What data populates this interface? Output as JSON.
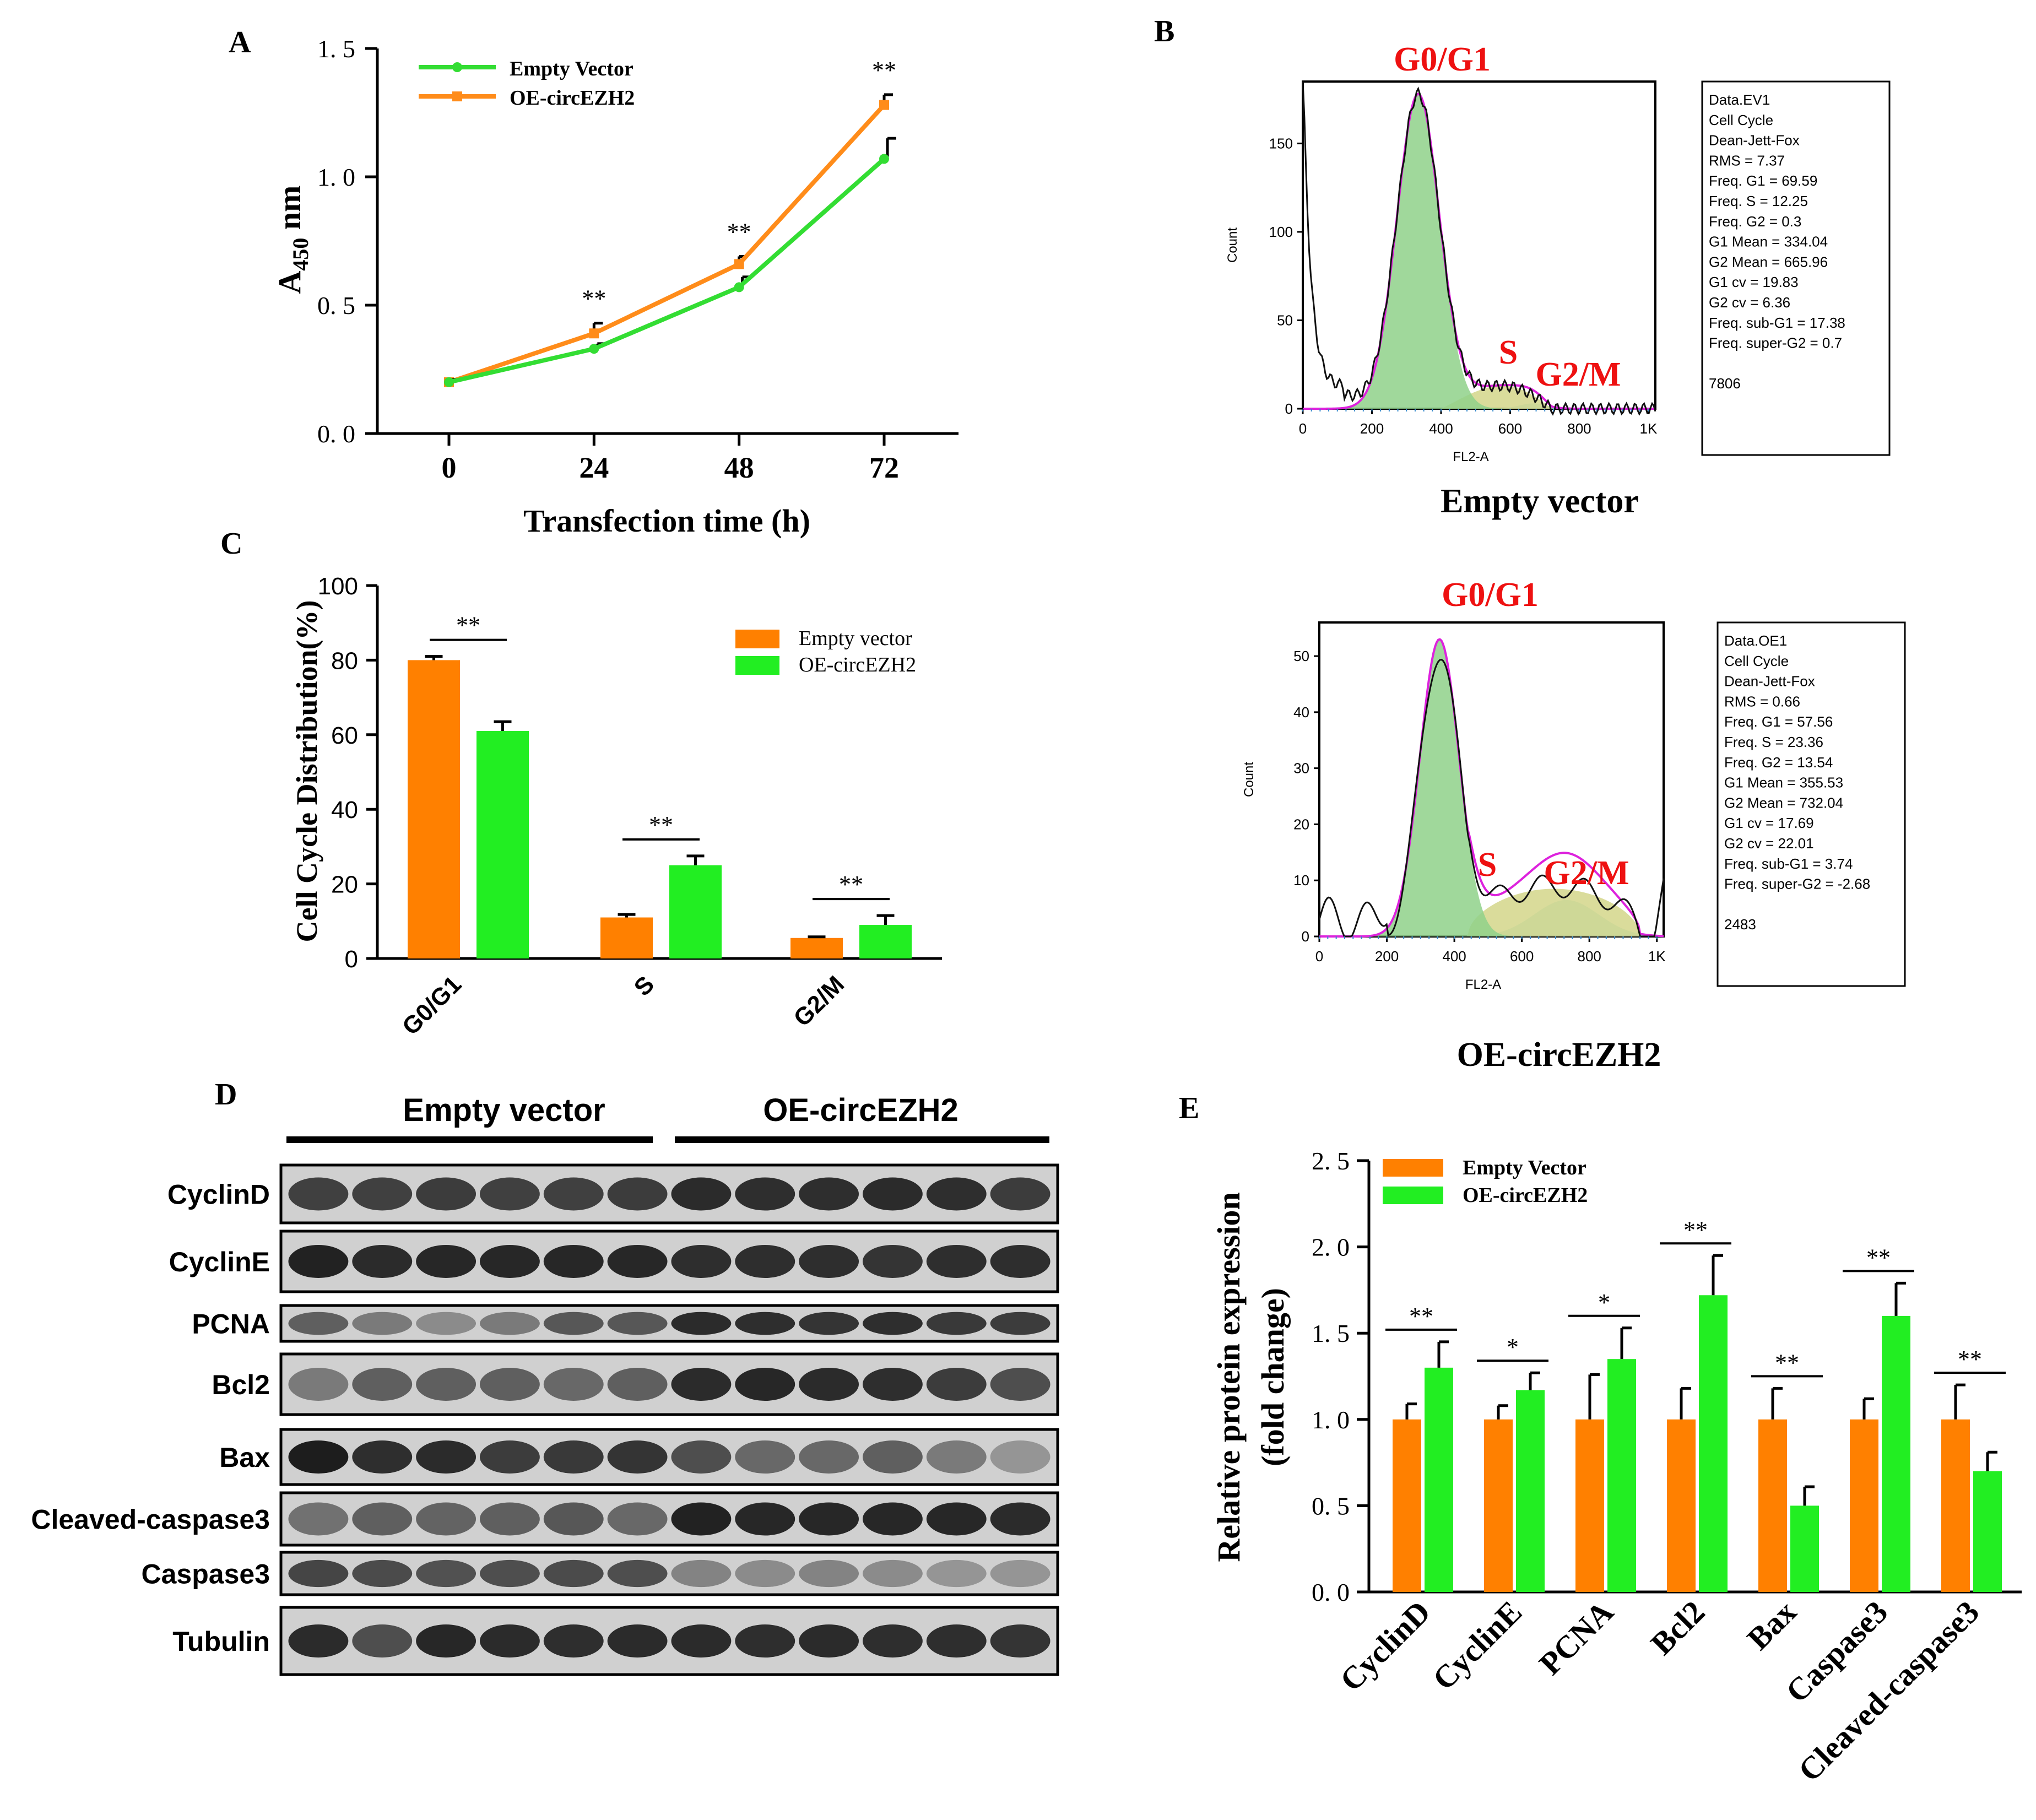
{
  "colors": {
    "empty": "#FF8000",
    "oe": "#22EE22",
    "line_empty": "#FF8C1A",
    "line_oe": "#33DD33",
    "red": "#EE1111",
    "magenta": "#DD22DD",
    "g1_fill": "#8FD18A",
    "s_fill": "#D4D68A",
    "g2_fill": "#9FDFE0",
    "blot_bg": "#D0D0D0"
  },
  "panels": {
    "A": "A",
    "B": "B",
    "C": "C",
    "D": "D",
    "E": "E"
  },
  "chart_data": [
    {
      "panel": "A",
      "type": "line",
      "x": [
        0,
        24,
        48,
        72
      ],
      "xlabel": "Transfection time (h)",
      "ylabel_main": "A",
      "ylabel_sub": "450",
      "ylabel_unit": " nm",
      "ylim": [
        0,
        1.5
      ],
      "yticks": [
        "0. 0",
        "0. 5",
        "1. 0",
        "1. 5"
      ],
      "ytick_values": [
        0,
        0.5,
        1.0,
        1.5
      ],
      "xticks": [
        "0",
        "24",
        "48",
        "72"
      ],
      "legend_position": "top-left",
      "series": [
        {
          "name": "Empty Vector",
          "values": [
            0.2,
            0.33,
            0.57,
            1.07
          ],
          "errors": [
            0.01,
            0.02,
            0.04,
            0.08
          ]
        },
        {
          "name": "OE-circEZH2",
          "values": [
            0.2,
            0.39,
            0.66,
            1.28
          ],
          "errors": [
            0.01,
            0.04,
            0.03,
            0.04
          ]
        }
      ],
      "significance": [
        "**",
        "**",
        "**"
      ]
    },
    {
      "panel": "B1",
      "type": "area",
      "title": "Empty vector",
      "ylabel": "Count",
      "xlabel": "FL2-A",
      "xticks": [
        "0",
        "200",
        "400",
        "600",
        "800",
        "1K"
      ],
      "yticks": [
        "0",
        "50",
        "100",
        "150"
      ],
      "ylim": [
        0,
        185
      ],
      "phase_labels": {
        "g1": "G0/G1",
        "s": "S",
        "g2": "G2/M"
      },
      "stats": [
        "Data.EV1",
        "Cell Cycle",
        "Dean-Jett-Fox",
        "RMS  = 7.37",
        "Freq. G1  = 69.59",
        "Freq. S = 12.25",
        "Freq. G2  = 0.3",
        "G1 Mean  = 334.04",
        "G2 Mean  = 665.96",
        "G1 cv  = 19.83",
        "G2 cv = 6.36",
        "Freq. sub-G1  = 17.38",
        "Freq. super-G2 = 0.7",
        "",
        "7806"
      ]
    },
    {
      "panel": "B2",
      "type": "area",
      "title": "OE-circEZH2",
      "ylabel": "Count",
      "xlabel": "FL2-A",
      "xticks": [
        "0",
        "200",
        "400",
        "600",
        "800",
        "1K"
      ],
      "yticks": [
        "0",
        "10",
        "20",
        "30",
        "40",
        "50"
      ],
      "ylim": [
        0,
        56
      ],
      "phase_labels": {
        "g1": "G0/G1",
        "s": "S",
        "g2": "G2/M"
      },
      "stats": [
        "Data.OE1",
        "Cell Cycle",
        "Dean-Jett-Fox",
        "RMS  = 0.66",
        "Freq. G1  = 57.56",
        "Freq. S = 23.36",
        "Freq. G2  = 13.54",
        "G1 Mean  = 355.53",
        "G2 Mean  = 732.04",
        "G1 cv  = 17.69",
        "G2 cv = 22.01",
        "Freq. sub-G1  = 3.74",
        "Freq. super-G2 = -2.68",
        "",
        "2483"
      ]
    },
    {
      "panel": "C",
      "type": "bar",
      "categories": [
        "G0/G1",
        "S",
        "G2/M"
      ],
      "ylabel": "Cell Cycle Distribution(%)",
      "ylim": [
        0,
        100
      ],
      "yticks": [
        "0",
        "20",
        "40",
        "60",
        "80",
        "100"
      ],
      "legend_position": "top-right",
      "series": [
        {
          "name": "Empty vector",
          "values": [
            80,
            11,
            5.5
          ],
          "errors": [
            1,
            0.8,
            0.3
          ]
        },
        {
          "name": "OE-circEZH2",
          "values": [
            61,
            25,
            9
          ],
          "errors": [
            2.5,
            2.5,
            2.5
          ]
        }
      ],
      "significance": [
        "**",
        "**",
        "**"
      ]
    },
    {
      "panel": "E",
      "type": "bar",
      "categories": [
        "CyclinD",
        "CyclinE",
        "PCNA",
        "Bcl2",
        "Bax",
        "Caspase3",
        "Cleaved-caspase3"
      ],
      "ylabel": "Relative protein expression",
      "ylabel2": "(fold change)",
      "ylim": [
        0,
        2.5
      ],
      "yticks": [
        "0. 0",
        "0. 5",
        "1. 0",
        "1. 5",
        "2. 0",
        "2. 5"
      ],
      "legend_position": "top-left",
      "series": [
        {
          "name": "Empty Vector",
          "values": [
            1.0,
            1.0,
            1.0,
            1.0,
            1.0,
            1.0,
            1.0
          ],
          "errors": [
            0.09,
            0.08,
            0.26,
            0.18,
            0.18,
            0.12,
            0.2
          ]
        },
        {
          "name": "OE-circEZH2",
          "values": [
            1.3,
            1.17,
            1.35,
            1.72,
            0.5,
            1.6,
            0.7
          ],
          "errors": [
            0.15,
            0.1,
            0.18,
            0.23,
            0.11,
            0.19,
            0.11
          ]
        }
      ],
      "significance": [
        "**",
        "*",
        "*",
        "**",
        "**",
        "**",
        "**"
      ]
    }
  ],
  "blot": {
    "group_labels": [
      "Empty vector",
      "OE-circEZH2"
    ],
    "lanes_per_group": 6,
    "rows": [
      {
        "label": "CyclinD",
        "intensity": [
          0.78,
          0.78,
          0.8,
          0.78,
          0.78,
          0.8,
          0.9,
          0.88,
          0.88,
          0.9,
          0.88,
          0.8
        ]
      },
      {
        "label": "CyclinE",
        "intensity": [
          0.95,
          0.9,
          0.92,
          0.92,
          0.92,
          0.92,
          0.88,
          0.88,
          0.88,
          0.85,
          0.88,
          0.88
        ]
      },
      {
        "label": "PCNA",
        "intensity": [
          0.6,
          0.45,
          0.35,
          0.45,
          0.65,
          0.65,
          0.9,
          0.88,
          0.85,
          0.88,
          0.82,
          0.8
        ]
      },
      {
        "label": "Bcl2",
        "intensity": [
          0.45,
          0.6,
          0.6,
          0.6,
          0.55,
          0.6,
          0.9,
          0.92,
          0.9,
          0.88,
          0.8,
          0.7
        ]
      },
      {
        "label": "Bax",
        "intensity": [
          0.98,
          0.88,
          0.9,
          0.8,
          0.82,
          0.85,
          0.7,
          0.55,
          0.55,
          0.6,
          0.45,
          0.3
        ]
      },
      {
        "label": "Cleaved-caspase3",
        "intensity": [
          0.5,
          0.6,
          0.58,
          0.6,
          0.65,
          0.55,
          0.95,
          0.92,
          0.92,
          0.92,
          0.92,
          0.9
        ]
      },
      {
        "label": "Caspase3",
        "intensity": [
          0.75,
          0.72,
          0.68,
          0.7,
          0.72,
          0.7,
          0.4,
          0.35,
          0.4,
          0.35,
          0.3,
          0.3
        ]
      },
      {
        "label": "Tubulin",
        "intensity": [
          0.9,
          0.7,
          0.92,
          0.9,
          0.88,
          0.9,
          0.9,
          0.88,
          0.9,
          0.88,
          0.88,
          0.85
        ]
      }
    ]
  }
}
